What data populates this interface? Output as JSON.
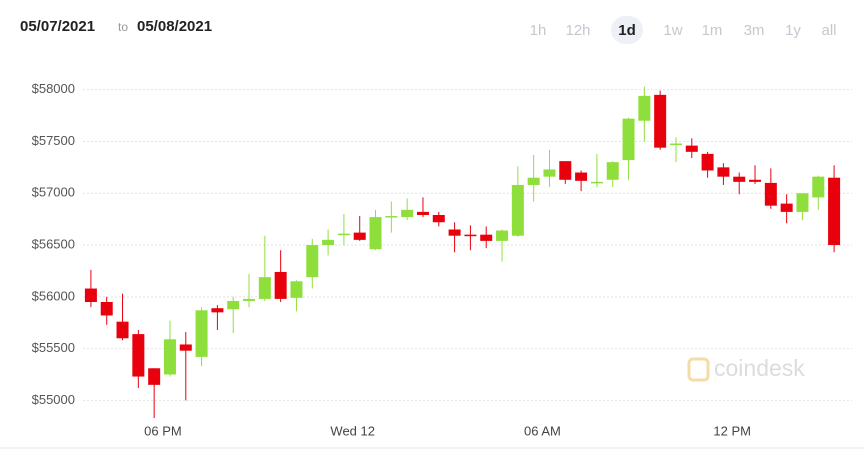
{
  "header": {
    "from": "05/07/2021",
    "to_word": "to",
    "to": "05/08/2021"
  },
  "ranges": [
    {
      "label": "1h"
    },
    {
      "label": "12h"
    },
    {
      "label": "1d",
      "active": true
    },
    {
      "label": "1w"
    },
    {
      "label": "1m"
    },
    {
      "label": "3m"
    },
    {
      "label": "1y"
    },
    {
      "label": "all"
    }
  ],
  "watermark": "coindesk",
  "chart_data": {
    "type": "candlestick",
    "categories": [
      null,
      null,
      null,
      null,
      null,
      "06 PM",
      null,
      null,
      null,
      null,
      null,
      null,
      null,
      null,
      null,
      null,
      null,
      "Wed 12",
      null,
      null,
      null,
      null,
      null,
      null,
      null,
      null,
      null,
      null,
      null,
      "06 AM",
      null,
      null,
      null,
      null,
      null,
      null,
      null,
      null,
      null,
      null,
      null,
      "12 PM",
      null,
      null,
      null,
      null,
      null,
      null
    ],
    "open": [
      56080,
      55950,
      55760,
      55640,
      55310,
      55250,
      55540,
      55420,
      55890,
      55880,
      55960,
      55980,
      56240,
      55990,
      56190,
      56500,
      56600,
      56620,
      56460,
      56770,
      56770,
      56820,
      56790,
      56650,
      56600,
      56600,
      56540,
      56590,
      57080,
      57160,
      57310,
      57200,
      57100,
      57130,
      57320,
      57700,
      57950,
      57470,
      57460,
      57380,
      57250,
      57160,
      57130,
      57100,
      56900,
      56820,
      56960,
      57150
    ],
    "high": [
      56260,
      56000,
      56030,
      55680,
      55310,
      55770,
      55660,
      55900,
      55920,
      56000,
      56220,
      56590,
      56450,
      56160,
      56560,
      56650,
      56800,
      56780,
      56840,
      56920,
      56950,
      56960,
      56820,
      56720,
      56690,
      56680,
      56650,
      57260,
      57370,
      57420,
      57310,
      57220,
      57380,
      57310,
      57730,
      58030,
      57990,
      57540,
      57530,
      57400,
      57290,
      57200,
      57270,
      57240,
      56990,
      57000,
      57170,
      57270
    ],
    "low": [
      55900,
      55730,
      55580,
      55120,
      54830,
      55230,
      55000,
      55330,
      55680,
      55650,
      55900,
      55960,
      55950,
      55860,
      56080,
      56400,
      56500,
      56540,
      56450,
      56620,
      56740,
      56770,
      56680,
      56430,
      56450,
      56470,
      56340,
      56580,
      56920,
      57060,
      57090,
      57020,
      57060,
      57060,
      57130,
      57500,
      57420,
      57300,
      57340,
      57150,
      57080,
      56990,
      57090,
      56850,
      56710,
      56740,
      56840,
      56430
    ],
    "close": [
      55950,
      55820,
      55600,
      55230,
      55150,
      55590,
      55480,
      55870,
      55850,
      55960,
      55980,
      56190,
      55980,
      56150,
      56500,
      56550,
      56610,
      56550,
      56770,
      56780,
      56840,
      56790,
      56720,
      56590,
      56590,
      56540,
      56640,
      57080,
      57150,
      57230,
      57130,
      57120,
      57110,
      57300,
      57720,
      57940,
      57440,
      57480,
      57400,
      57220,
      57160,
      57110,
      57110,
      56880,
      56820,
      57000,
      57160,
      56500
    ],
    "up_color": "#8fdf3c",
    "down_color": "#e8000d",
    "ylim": [
      54830,
      58190
    ],
    "yticks": [
      {
        "value": 55000,
        "label": "$55000"
      },
      {
        "value": 55500,
        "label": "$55500"
      },
      {
        "value": 56000,
        "label": "$56000"
      },
      {
        "value": 56500,
        "label": "$56500"
      },
      {
        "value": 57000,
        "label": "$57000"
      },
      {
        "value": 57500,
        "label": "$57500"
      },
      {
        "value": 58000,
        "label": "$58000"
      }
    ],
    "grid": true
  }
}
